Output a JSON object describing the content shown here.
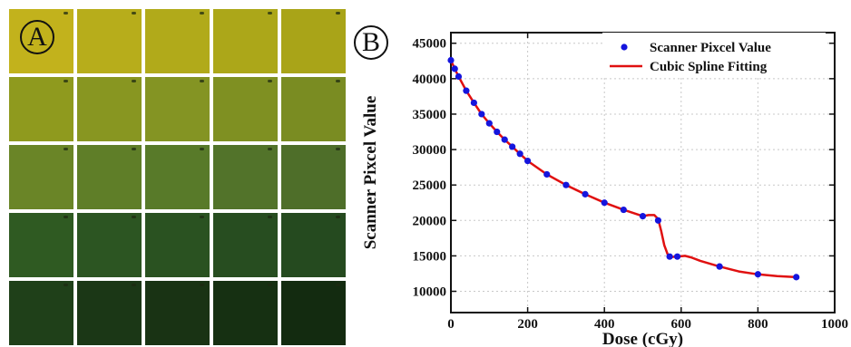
{
  "panels": {
    "a_label": "A",
    "b_label": "B"
  },
  "swatches": {
    "rows": [
      [
        "#c2b21c",
        "#b7ad1b",
        "#b1aa1a",
        "#aca719",
        "#a9a418"
      ],
      [
        "#8f9a1e",
        "#889621",
        "#849423",
        "#7f9022",
        "#7a8c22"
      ],
      [
        "#6a8527",
        "#5f7e28",
        "#587a29",
        "#52732a",
        "#4e6e29"
      ],
      [
        "#2f5a22",
        "#2c5522",
        "#2a5221",
        "#274d20",
        "#254a1f"
      ],
      [
        "#1f4019",
        "#1b3716",
        "#193314",
        "#163012",
        "#132b10"
      ]
    ]
  },
  "chart_data": {
    "type": "scatter",
    "xlabel": "Dose (cGy)",
    "ylabel": "Scanner Pixcel Value",
    "xlim": [
      0,
      1000
    ],
    "ylim": [
      7000,
      46500
    ],
    "xticks": [
      "0",
      "200",
      "400",
      "600",
      "800",
      "1000"
    ],
    "yticks": [
      "10000",
      "15000",
      "20000",
      "25000",
      "30000",
      "35000",
      "40000",
      "45000"
    ],
    "grid": true,
    "legend_position": "top-right",
    "series": [
      {
        "name": "Scanner Pixcel Value",
        "kind": "scatter",
        "color": "#1515dd",
        "x": [
          0,
          10,
          20,
          40,
          60,
          80,
          100,
          120,
          140,
          160,
          180,
          200,
          250,
          300,
          350,
          400,
          450,
          500,
          540,
          570,
          590,
          700,
          800,
          900
        ],
        "y": [
          42600,
          41400,
          40300,
          38300,
          36600,
          35000,
          33700,
          32500,
          31400,
          30400,
          29400,
          28400,
          26500,
          25000,
          23700,
          22500,
          21500,
          20600,
          20000,
          14900,
          14900,
          13500,
          12400,
          12000
        ]
      },
      {
        "name": "Cubic Spline Fitting",
        "kind": "line",
        "color": "#e01010",
        "x": [
          0,
          10,
          20,
          40,
          60,
          80,
          100,
          120,
          140,
          160,
          180,
          200,
          250,
          300,
          350,
          400,
          450,
          500,
          515,
          530,
          540,
          548,
          556,
          565,
          575,
          590,
          610,
          625,
          650,
          700,
          750,
          800,
          850,
          900
        ],
        "y": [
          42600,
          41400,
          40300,
          38300,
          36600,
          35000,
          33700,
          32500,
          31400,
          30400,
          29400,
          28400,
          26500,
          25000,
          23700,
          22500,
          21500,
          20600,
          20750,
          20750,
          20200,
          18500,
          16500,
          15200,
          14850,
          14900,
          15000,
          14800,
          14300,
          13500,
          12800,
          12400,
          12150,
          12000
        ]
      }
    ]
  }
}
